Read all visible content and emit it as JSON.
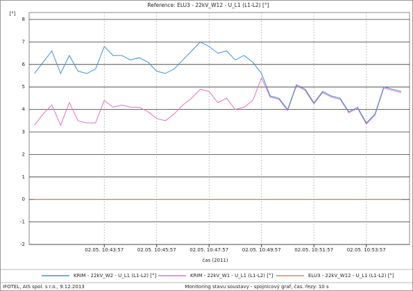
{
  "chart_data": {
    "type": "line",
    "title": "Reference: ELU3 - 22kV_W12 - U_L1 (L1-L2) [°]",
    "y_label": "[°]",
    "x_label": "čas (2011)",
    "x": [
      38477,
      38497,
      38517,
      38537,
      38557,
      38577,
      38597,
      38617,
      38637,
      38657,
      38677,
      38697,
      38717,
      38737,
      38757,
      38777,
      38797,
      38817,
      38837,
      38857,
      38877,
      38897,
      38917,
      38937,
      38957,
      38977,
      38997,
      39017,
      39037,
      39057,
      39077,
      39097,
      39117,
      39137,
      39157,
      39177,
      39197,
      39217,
      39237,
      39257,
      39277,
      39297,
      39317
    ],
    "series": [
      {
        "name": "KRIM - 22kV_W2 - U_L1 (L1-L2) [°]",
        "color": "#3c8fd6",
        "values": [
          5.6,
          6.1,
          6.6,
          5.6,
          6.4,
          5.7,
          5.6,
          5.8,
          6.8,
          6.4,
          6.4,
          6.2,
          6.3,
          6.1,
          5.7,
          5.6,
          5.8,
          6.2,
          6.6,
          7.0,
          6.8,
          6.5,
          6.6,
          6.2,
          6.4,
          6.1,
          5.6,
          4.6,
          4.5,
          4.0,
          5.1,
          4.9,
          4.3,
          4.8,
          4.6,
          4.5,
          3.9,
          4.1,
          3.4,
          3.8,
          5.0,
          4.9,
          4.8
        ]
      },
      {
        "name": "KRIM - 22kV_W1 - U_L1 (L1-L2) [°]",
        "color": "#e070c0",
        "values": [
          3.3,
          3.8,
          4.2,
          3.3,
          4.3,
          3.5,
          3.4,
          3.4,
          4.4,
          4.1,
          4.2,
          4.1,
          4.1,
          3.9,
          3.6,
          3.5,
          3.8,
          4.2,
          4.5,
          4.9,
          4.8,
          4.3,
          4.5,
          4.0,
          4.1,
          4.4,
          5.4,
          4.55,
          4.45,
          3.95,
          5.05,
          4.85,
          4.25,
          4.75,
          4.55,
          4.45,
          3.85,
          4.05,
          3.35,
          3.75,
          4.95,
          4.85,
          4.75
        ]
      },
      {
        "name": "ELU3 - 22kV_W12 - U_L1 (L1-L2) [°]",
        "color": "#e8803a",
        "values": [
          0,
          0,
          0,
          0,
          0,
          0,
          0,
          0,
          0,
          0,
          0,
          0,
          0,
          0,
          0,
          0,
          0,
          0,
          0,
          0,
          0,
          0,
          0,
          0,
          0,
          0,
          0,
          0,
          0,
          0,
          0,
          0,
          0,
          0,
          0,
          0,
          0,
          0,
          0,
          0,
          0,
          0,
          0
        ]
      }
    ],
    "xlim": [
      38465,
      39336
    ],
    "xticks": [
      {
        "value": 38637,
        "label": "02.05. 10:43:57"
      },
      {
        "value": 38757,
        "label": "02.05. 10:45:57"
      },
      {
        "value": 38877,
        "label": "02.05. 10:47:57"
      },
      {
        "value": 38997,
        "label": "02.05. 10:49:57"
      },
      {
        "value": 39117,
        "label": "02.05. 10:51:57"
      },
      {
        "value": 39237,
        "label": "02.05. 10:53:57"
      }
    ],
    "ylim": [
      -2,
      8
    ],
    "yticks": [
      -2,
      -1,
      0,
      1,
      2,
      3,
      4,
      5,
      6,
      7,
      8
    ],
    "grid": true,
    "legend": "bottom",
    "footer": {
      "left": "IFOTEL, AIS spol. s r.o., 9.12.2013",
      "right": "Monitoring stavu soustavy - spojnicový graf, čas. řezy: 10 s"
    }
  }
}
